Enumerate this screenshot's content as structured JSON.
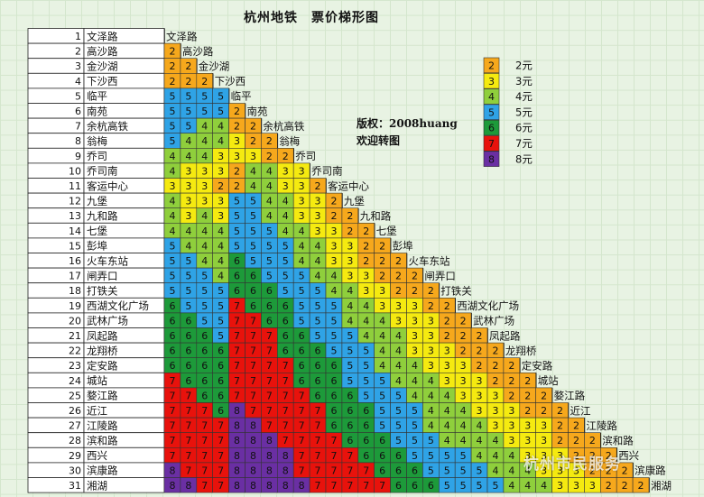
{
  "chart_data": {
    "type": "table",
    "title": "杭州地铁　票价梯形图",
    "stations": [
      "文泽路",
      "高沙路",
      "金沙湖",
      "下沙西",
      "临平",
      "南苑",
      "余杭高铁",
      "翁梅",
      "乔司",
      "乔司南",
      "客运中心",
      "九堡",
      "九和路",
      "七堡",
      "彭埠",
      "火车东站",
      "闸弄口",
      "打铁关",
      "西湖文化广场",
      "武林广场",
      "凤起路",
      "龙翔桥",
      "定安路",
      "城站",
      "婺江路",
      "近江",
      "江陵路",
      "滨和路",
      "西兴",
      "滨康路",
      "湘湖"
    ],
    "fares": [
      [],
      [
        2
      ],
      [
        2,
        2
      ],
      [
        2,
        2,
        2
      ],
      [
        5,
        5,
        5,
        5
      ],
      [
        5,
        5,
        5,
        5,
        2
      ],
      [
        5,
        5,
        4,
        4,
        2,
        2
      ],
      [
        5,
        4,
        4,
        4,
        3,
        2,
        2
      ],
      [
        4,
        4,
        4,
        3,
        3,
        3,
        2,
        2
      ],
      [
        4,
        3,
        3,
        3,
        2,
        4,
        4,
        3,
        3
      ],
      [
        3,
        3,
        3,
        2,
        2,
        4,
        4,
        3,
        3,
        2
      ],
      [
        4,
        3,
        3,
        3,
        5,
        5,
        4,
        4,
        3,
        3,
        2
      ],
      [
        4,
        3,
        4,
        3,
        5,
        5,
        4,
        4,
        3,
        3,
        2,
        2
      ],
      [
        4,
        4,
        4,
        4,
        5,
        5,
        5,
        4,
        4,
        3,
        3,
        2,
        2
      ],
      [
        5,
        4,
        4,
        4,
        5,
        5,
        5,
        5,
        4,
        4,
        3,
        3,
        2,
        2
      ],
      [
        5,
        5,
        4,
        4,
        6,
        5,
        5,
        5,
        4,
        4,
        3,
        3,
        2,
        2,
        2
      ],
      [
        5,
        5,
        5,
        4,
        6,
        6,
        5,
        5,
        5,
        4,
        4,
        3,
        3,
        2,
        2,
        2
      ],
      [
        5,
        5,
        5,
        5,
        6,
        6,
        6,
        5,
        5,
        5,
        4,
        4,
        3,
        3,
        2,
        2,
        2
      ],
      [
        6,
        5,
        5,
        5,
        7,
        6,
        6,
        6,
        5,
        5,
        5,
        4,
        4,
        3,
        3,
        3,
        2,
        2
      ],
      [
        6,
        6,
        5,
        5,
        7,
        7,
        6,
        6,
        5,
        5,
        5,
        4,
        4,
        4,
        3,
        3,
        3,
        2,
        2
      ],
      [
        6,
        6,
        6,
        5,
        7,
        7,
        7,
        6,
        6,
        5,
        5,
        5,
        4,
        4,
        4,
        3,
        3,
        2,
        2,
        2
      ],
      [
        6,
        6,
        6,
        6,
        7,
        7,
        7,
        6,
        6,
        6,
        5,
        5,
        5,
        4,
        4,
        3,
        3,
        3,
        2,
        2,
        2
      ],
      [
        6,
        6,
        6,
        6,
        7,
        7,
        7,
        7,
        6,
        6,
        6,
        5,
        5,
        4,
        4,
        4,
        3,
        3,
        3,
        2,
        2,
        2
      ],
      [
        7,
        6,
        6,
        6,
        7,
        7,
        7,
        7,
        6,
        6,
        6,
        5,
        5,
        5,
        4,
        4,
        4,
        3,
        3,
        3,
        2,
        2,
        2
      ],
      [
        7,
        7,
        6,
        6,
        7,
        7,
        7,
        7,
        7,
        6,
        6,
        6,
        5,
        5,
        5,
        4,
        4,
        4,
        3,
        3,
        3,
        2,
        2,
        2
      ],
      [
        7,
        7,
        7,
        6,
        8,
        7,
        7,
        7,
        7,
        7,
        6,
        6,
        6,
        5,
        5,
        5,
        4,
        4,
        4,
        3,
        3,
        3,
        2,
        2,
        2
      ],
      [
        7,
        7,
        7,
        7,
        8,
        8,
        7,
        7,
        7,
        7,
        6,
        6,
        6,
        5,
        5,
        5,
        4,
        4,
        4,
        4,
        3,
        3,
        3,
        3,
        2,
        2
      ],
      [
        7,
        7,
        7,
        7,
        8,
        8,
        8,
        7,
        7,
        7,
        7,
        6,
        6,
        6,
        5,
        5,
        5,
        4,
        4,
        4,
        4,
        3,
        3,
        3,
        2,
        2,
        2
      ],
      [
        7,
        7,
        7,
        7,
        8,
        8,
        8,
        8,
        7,
        7,
        7,
        7,
        6,
        6,
        6,
        5,
        5,
        5,
        5,
        4,
        4,
        4,
        3,
        3,
        3,
        2,
        2,
        2
      ],
      [
        8,
        7,
        7,
        7,
        8,
        8,
        8,
        8,
        7,
        7,
        7,
        7,
        7,
        6,
        6,
        6,
        5,
        5,
        5,
        5,
        4,
        4,
        4,
        3,
        3,
        3,
        2,
        2,
        2
      ],
      [
        8,
        8,
        7,
        7,
        8,
        8,
        8,
        8,
        8,
        7,
        7,
        7,
        7,
        7,
        6,
        6,
        6,
        5,
        5,
        5,
        5,
        4,
        4,
        4,
        3,
        3,
        3,
        2,
        2,
        2
      ]
    ],
    "legend": [
      {
        "value": 2,
        "label": "2元",
        "color": "#f6a81c"
      },
      {
        "value": 3,
        "label": "3元",
        "color": "#f5ea10"
      },
      {
        "value": 4,
        "label": "4元",
        "color": "#8fcf3c"
      },
      {
        "value": 5,
        "label": "5元",
        "color": "#2fa3e6"
      },
      {
        "value": 6,
        "label": "6元",
        "color": "#1d9a3a"
      },
      {
        "value": 7,
        "label": "7元",
        "color": "#e8120c"
      },
      {
        "value": 8,
        "label": "8元",
        "color": "#6a2fa3"
      }
    ],
    "notes": [
      "版权：2008huang",
      "欢迎转图"
    ]
  },
  "watermark": "杭州市民服务"
}
